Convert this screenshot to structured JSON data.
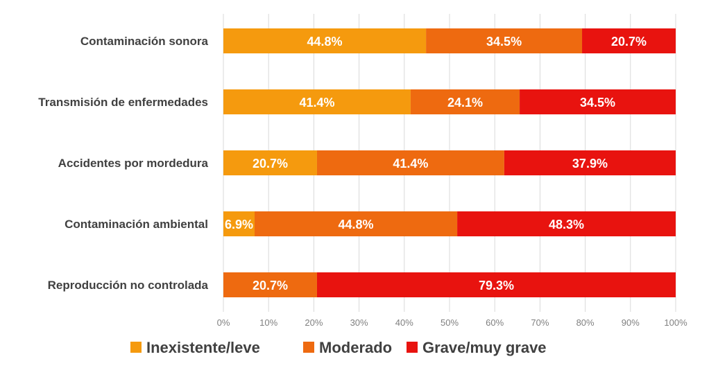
{
  "chart_data": {
    "type": "bar",
    "orientation": "horizontal",
    "stacked": "percent",
    "categories": [
      "Contaminación sonora",
      "Transmisión de enfermedades",
      "Accidentes por mordedura",
      "Contaminación ambiental",
      "Reproducción no controlada"
    ],
    "series": [
      {
        "name": "Inexistente/leve",
        "color": "#f59a0e",
        "values": [
          44.8,
          41.4,
          20.7,
          6.9,
          0
        ],
        "labels": [
          "44.8%",
          "41.4%",
          "20.7%",
          "6.9%",
          ""
        ]
      },
      {
        "name": "Moderado",
        "color": "#ee6a10",
        "values": [
          34.5,
          24.1,
          41.4,
          44.8,
          20.7
        ],
        "labels": [
          "34.5%",
          "24.1%",
          "41.4%",
          "44.8%",
          "20.7%"
        ]
      },
      {
        "name": "Grave/muy grave",
        "color": "#e8130f",
        "values": [
          20.7,
          34.5,
          37.9,
          48.3,
          79.3
        ],
        "labels": [
          "20.7%",
          "34.5%",
          "37.9%",
          "48.3%",
          "79.3%"
        ]
      }
    ],
    "x_ticks": [
      "0%",
      "10%",
      "20%",
      "30%",
      "40%",
      "50%",
      "60%",
      "70%",
      "80%",
      "90%",
      "100%"
    ],
    "xlim": [
      0,
      100
    ],
    "grid": true,
    "legend": "bottom"
  }
}
